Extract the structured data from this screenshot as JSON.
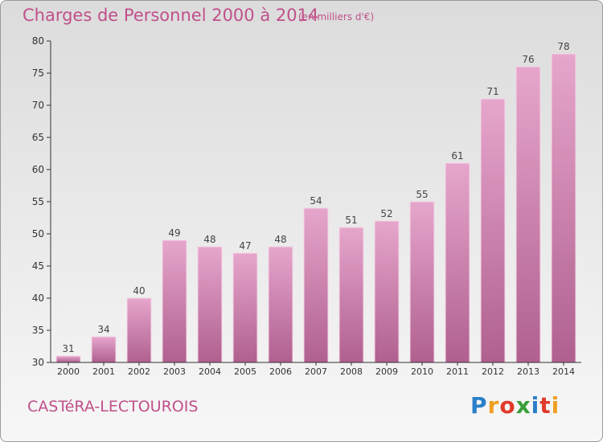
{
  "title": "Charges de Personnel 2000 à 2014",
  "subtitle": "(en milliers d'€)",
  "town": "CASTéRA-LECTOUROIS",
  "logo": {
    "letters": [
      "P",
      "r",
      "o",
      "x",
      "i",
      "t",
      "i"
    ],
    "colors": [
      "#2a7fc8",
      "#f0a020",
      "#e03a2a",
      "#3a9e3a",
      "#2a7fc8",
      "#e03a2a",
      "#f0a020"
    ]
  },
  "colors": {
    "accent": "#c0508a",
    "bar_top": "#e6a6cc",
    "bar_bottom": "#b0608f"
  },
  "chart_data": {
    "type": "bar",
    "categories": [
      "2000",
      "2001",
      "2002",
      "2003",
      "2004",
      "2005",
      "2006",
      "2007",
      "2008",
      "2009",
      "2010",
      "2011",
      "2012",
      "2013",
      "2014"
    ],
    "values": [
      31,
      34,
      40,
      49,
      48,
      47,
      48,
      54,
      51,
      52,
      55,
      61,
      71,
      76,
      78
    ],
    "title": "Charges de Personnel 2000 à 2014",
    "subtitle": "(en milliers d'€)",
    "xlabel": "",
    "ylabel": "",
    "ylim": [
      30,
      80
    ],
    "yticks": [
      30,
      35,
      40,
      45,
      50,
      55,
      60,
      65,
      70,
      75,
      80
    ],
    "grid": false,
    "data_labels": true
  }
}
